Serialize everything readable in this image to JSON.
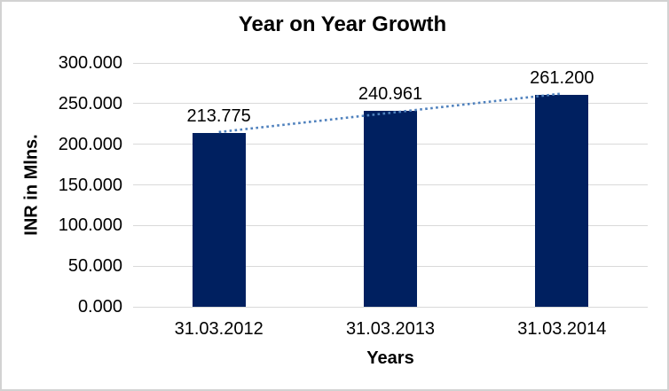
{
  "chart_data": {
    "type": "bar",
    "title": "Year on Year Growth",
    "categories": [
      "31.03.2012",
      "31.03.2013",
      "31.03.2014"
    ],
    "values": [
      213.775,
      240.961,
      261.2
    ],
    "data_labels": [
      "213.775",
      "240.961",
      "261.200"
    ],
    "xlabel": "Years",
    "ylabel": "INR in Mlns.",
    "ylim": [
      0,
      300
    ],
    "ytick_interval": 50,
    "ytick_labels": [
      "0.000",
      "50.000",
      "100.000",
      "150.000",
      "200.000",
      "250.000",
      "300.000"
    ],
    "grid": true,
    "legend": "none",
    "trendline": {
      "type": "linear",
      "style": "dotted",
      "color": "#4F81BD"
    },
    "colors": {
      "bar": "#002060",
      "gridline": "#D9D9D9",
      "axis_line": "#D9D9D9",
      "text": "#000000",
      "background": "#FFFFFF",
      "frame_border": "#D2D2D2"
    }
  }
}
